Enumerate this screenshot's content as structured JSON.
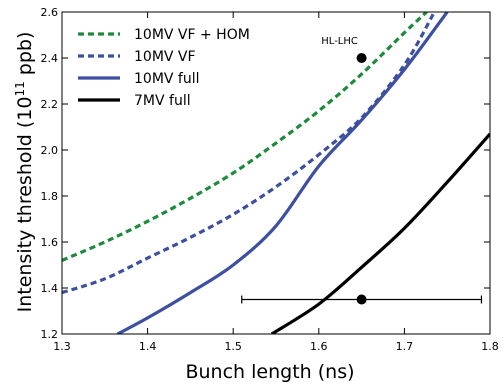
{
  "chart_data": {
    "type": "line",
    "xlabel": "Bunch length (ns)",
    "ylabel_main": "Intensity threshold (10",
    "ylabel_sup": "11",
    "ylabel_tail": " ppb)",
    "xlim": [
      1.3,
      1.8
    ],
    "ylim": [
      1.2,
      2.6
    ],
    "x_ticks": [
      "1.3",
      "1.4",
      "1.5",
      "1.6",
      "1.7",
      "1.8"
    ],
    "y_ticks": [
      "1.2",
      "1.4",
      "1.6",
      "1.8",
      "2.0",
      "2.2",
      "2.4",
      "2.6"
    ],
    "legend_position": "top-left",
    "series": [
      {
        "name": "10MV VF + HOM",
        "color": "#1e8a3c",
        "style": "dashed",
        "x": [
          1.3,
          1.35,
          1.4,
          1.45,
          1.5,
          1.55,
          1.6,
          1.65,
          1.7,
          1.726
        ],
        "y": [
          1.52,
          1.6,
          1.69,
          1.79,
          1.9,
          2.03,
          2.17,
          2.33,
          2.51,
          2.6
        ]
      },
      {
        "name": "10MV VF",
        "color": "#3c4fa0",
        "style": "dashed",
        "x": [
          1.3,
          1.35,
          1.4,
          1.45,
          1.5,
          1.55,
          1.6,
          1.65,
          1.7,
          1.735
        ],
        "y": [
          1.38,
          1.44,
          1.53,
          1.62,
          1.72,
          1.84,
          1.98,
          2.14,
          2.37,
          2.6
        ]
      },
      {
        "name": "10MV full",
        "color": "#3c4fa0",
        "style": "solid",
        "x": [
          1.365,
          1.4,
          1.45,
          1.5,
          1.55,
          1.6,
          1.65,
          1.7,
          1.75
        ],
        "y": [
          1.2,
          1.27,
          1.38,
          1.5,
          1.67,
          1.93,
          2.13,
          2.35,
          2.6
        ]
      },
      {
        "name": "7MV full",
        "color": "#000000",
        "style": "solid",
        "x": [
          1.545,
          1.6,
          1.65,
          1.7,
          1.75,
          1.8
        ],
        "y": [
          1.2,
          1.33,
          1.49,
          1.66,
          1.86,
          2.07
        ]
      }
    ],
    "points": [
      {
        "label": "HL-LHC",
        "x": 1.65,
        "y": 2.4
      },
      {
        "label": "",
        "x": 1.65,
        "y": 1.35,
        "xerr": [
          1.51,
          1.79
        ]
      }
    ]
  }
}
